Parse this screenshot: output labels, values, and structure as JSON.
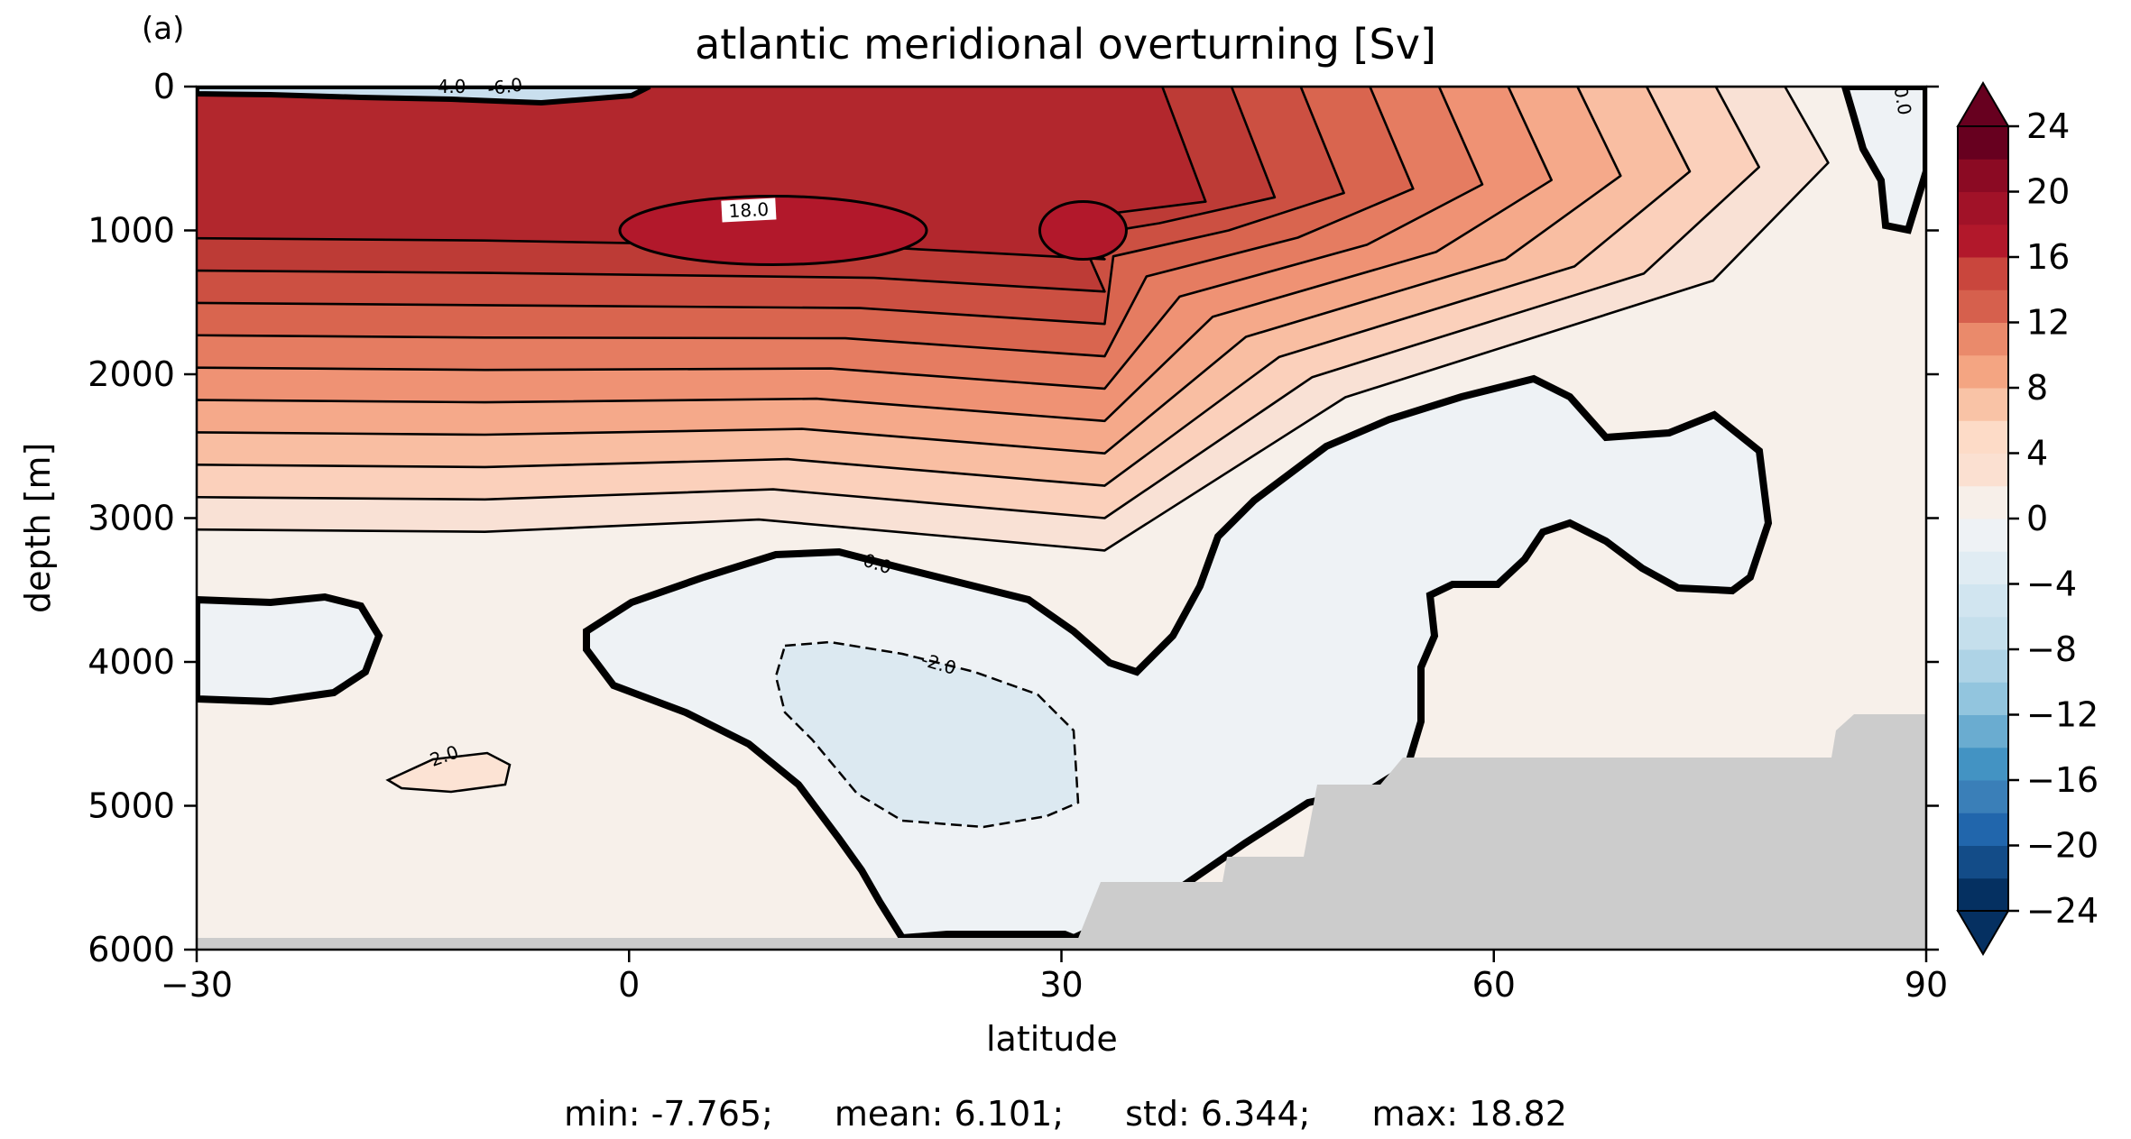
{
  "panel_letter": "(a)",
  "stats": {
    "min": "min: -7.765;",
    "mean": "mean: 6.101;",
    "std": "std: 6.344;",
    "max": "max: 18.82"
  },
  "colors": {
    "strong_red": "#b2182b",
    "red": "#d6604d",
    "light_red": "#f4a582",
    "pale_red": "#fddbc7",
    "near_zero_pos": "#f7f0ea",
    "near_zero_neg": "#eef2f5",
    "light_blue": "#d1e5f0",
    "blue": "#4393c3",
    "dark_blue": "#053061",
    "land_mask": "#cccccc"
  },
  "chart_data": {
    "type": "contour",
    "title": "atlantic meridional overturning [Sv]",
    "xlabel": "latitude",
    "ylabel": "depth [m]",
    "xlim": [
      -30,
      90
    ],
    "ylim": [
      6000,
      0
    ],
    "xticks": [
      -30,
      0,
      30,
      60,
      90
    ],
    "xtick_labels": [
      "−30",
      "0",
      "30",
      "60",
      "90"
    ],
    "yticks": [
      0,
      1000,
      2000,
      3000,
      4000,
      5000,
      6000
    ],
    "ytick_labels": [
      "0",
      "1000",
      "2000",
      "3000",
      "4000",
      "5000",
      "6000"
    ],
    "colorbar": {
      "cmap": "RdBu_r",
      "range": [
        -24,
        24
      ],
      "extend": "both",
      "ticks": [
        -24,
        -20,
        -16,
        -12,
        -8,
        -4,
        0,
        4,
        8,
        12,
        16,
        20,
        24
      ],
      "tick_labels": [
        "−24",
        "−20",
        "−16",
        "−12",
        "−8",
        "−4",
        "0",
        "4",
        "8",
        "12",
        "16",
        "20",
        "24"
      ]
    },
    "contour_labels": [
      "18.0",
      "0.0",
      "-2.0",
      "2.0",
      "-4.0",
      "-6.0",
      "0.0"
    ],
    "main_cell": {
      "description_values": "positive overturning cell, max about 18.8 Sv near 1000 m",
      "center_lat": 15,
      "center_depth": 1000,
      "max_value": 18.8
    }
  }
}
